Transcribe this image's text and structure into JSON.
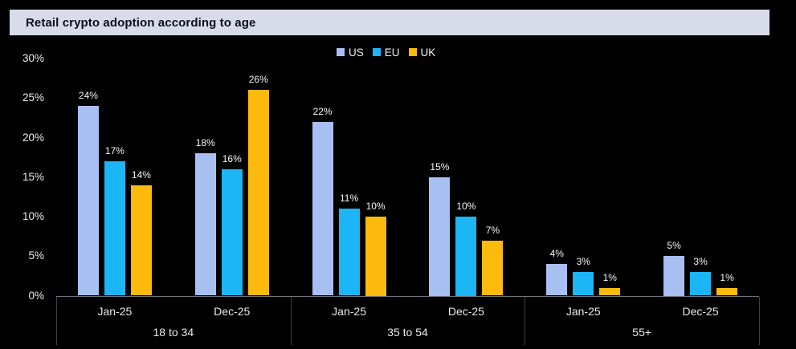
{
  "title": "Retail crypto adoption according to age",
  "colors": {
    "background": "#000000",
    "title_bar_bg": "#d8dcea",
    "title_text": "#0b0e1a",
    "axis_line": "#70757e",
    "divider": "#3a4049",
    "tick_text": "#ececec",
    "data_label_text": "#f7f7f7"
  },
  "chart_data": {
    "type": "bar",
    "title": "Retail crypto adoption according to age",
    "xlabel": "",
    "ylabel": "",
    "ylim": [
      0,
      30
    ],
    "yticks": [
      0,
      5,
      10,
      15,
      20,
      25,
      30
    ],
    "ytick_suffix": "%",
    "data_label_suffix": "%",
    "grid": false,
    "legend_position": "top-center",
    "group_labels": [
      "18 to 34",
      "35 to 54",
      "55+"
    ],
    "cluster_labels": [
      "Jan-25",
      "Dec-25"
    ],
    "series": [
      {
        "name": "US",
        "color": "#a8bff2",
        "values": [
          [
            24,
            18
          ],
          [
            22,
            15
          ],
          [
            4,
            5
          ]
        ]
      },
      {
        "name": "EU",
        "color": "#1cb5f5",
        "values": [
          [
            17,
            16
          ],
          [
            11,
            10
          ],
          [
            3,
            3
          ]
        ]
      },
      {
        "name": "UK",
        "color": "#fcba0d",
        "values": [
          [
            14,
            26
          ],
          [
            10,
            7
          ],
          [
            1,
            1
          ]
        ]
      }
    ]
  }
}
